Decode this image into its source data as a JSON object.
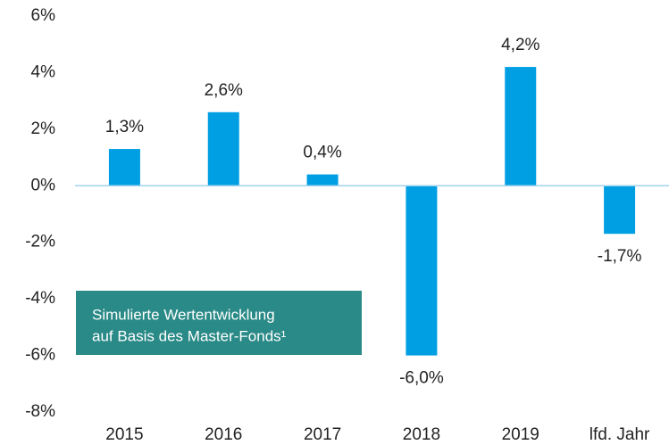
{
  "chart_data": {
    "type": "bar",
    "categories": [
      "2015",
      "2016",
      "2017",
      "2018",
      "2019",
      "lfd. Jahr"
    ],
    "values": [
      1.3,
      2.6,
      0.4,
      -6.0,
      4.2,
      -1.7
    ],
    "value_labels": [
      "1,3%",
      "2,6%",
      "0,4%",
      "-6,0%",
      "4,2%",
      "-1,7%"
    ],
    "color": "#009fe3",
    "ylim": [
      -8,
      6
    ],
    "yticks": [
      {
        "value": -8,
        "label": "-8%"
      },
      {
        "value": -6,
        "label": "-6%"
      },
      {
        "value": -4,
        "label": "-4%"
      },
      {
        "value": -2,
        "label": "-2%"
      },
      {
        "value": 0,
        "label": "0%"
      },
      {
        "value": 2,
        "label": "2%"
      },
      {
        "value": 4,
        "label": "4%"
      },
      {
        "value": 6,
        "label": "6%"
      }
    ],
    "grid": false,
    "annotation": [
      "Simulierte Wertentwicklung",
      "auf Basis des Master-Fonds¹"
    ]
  }
}
